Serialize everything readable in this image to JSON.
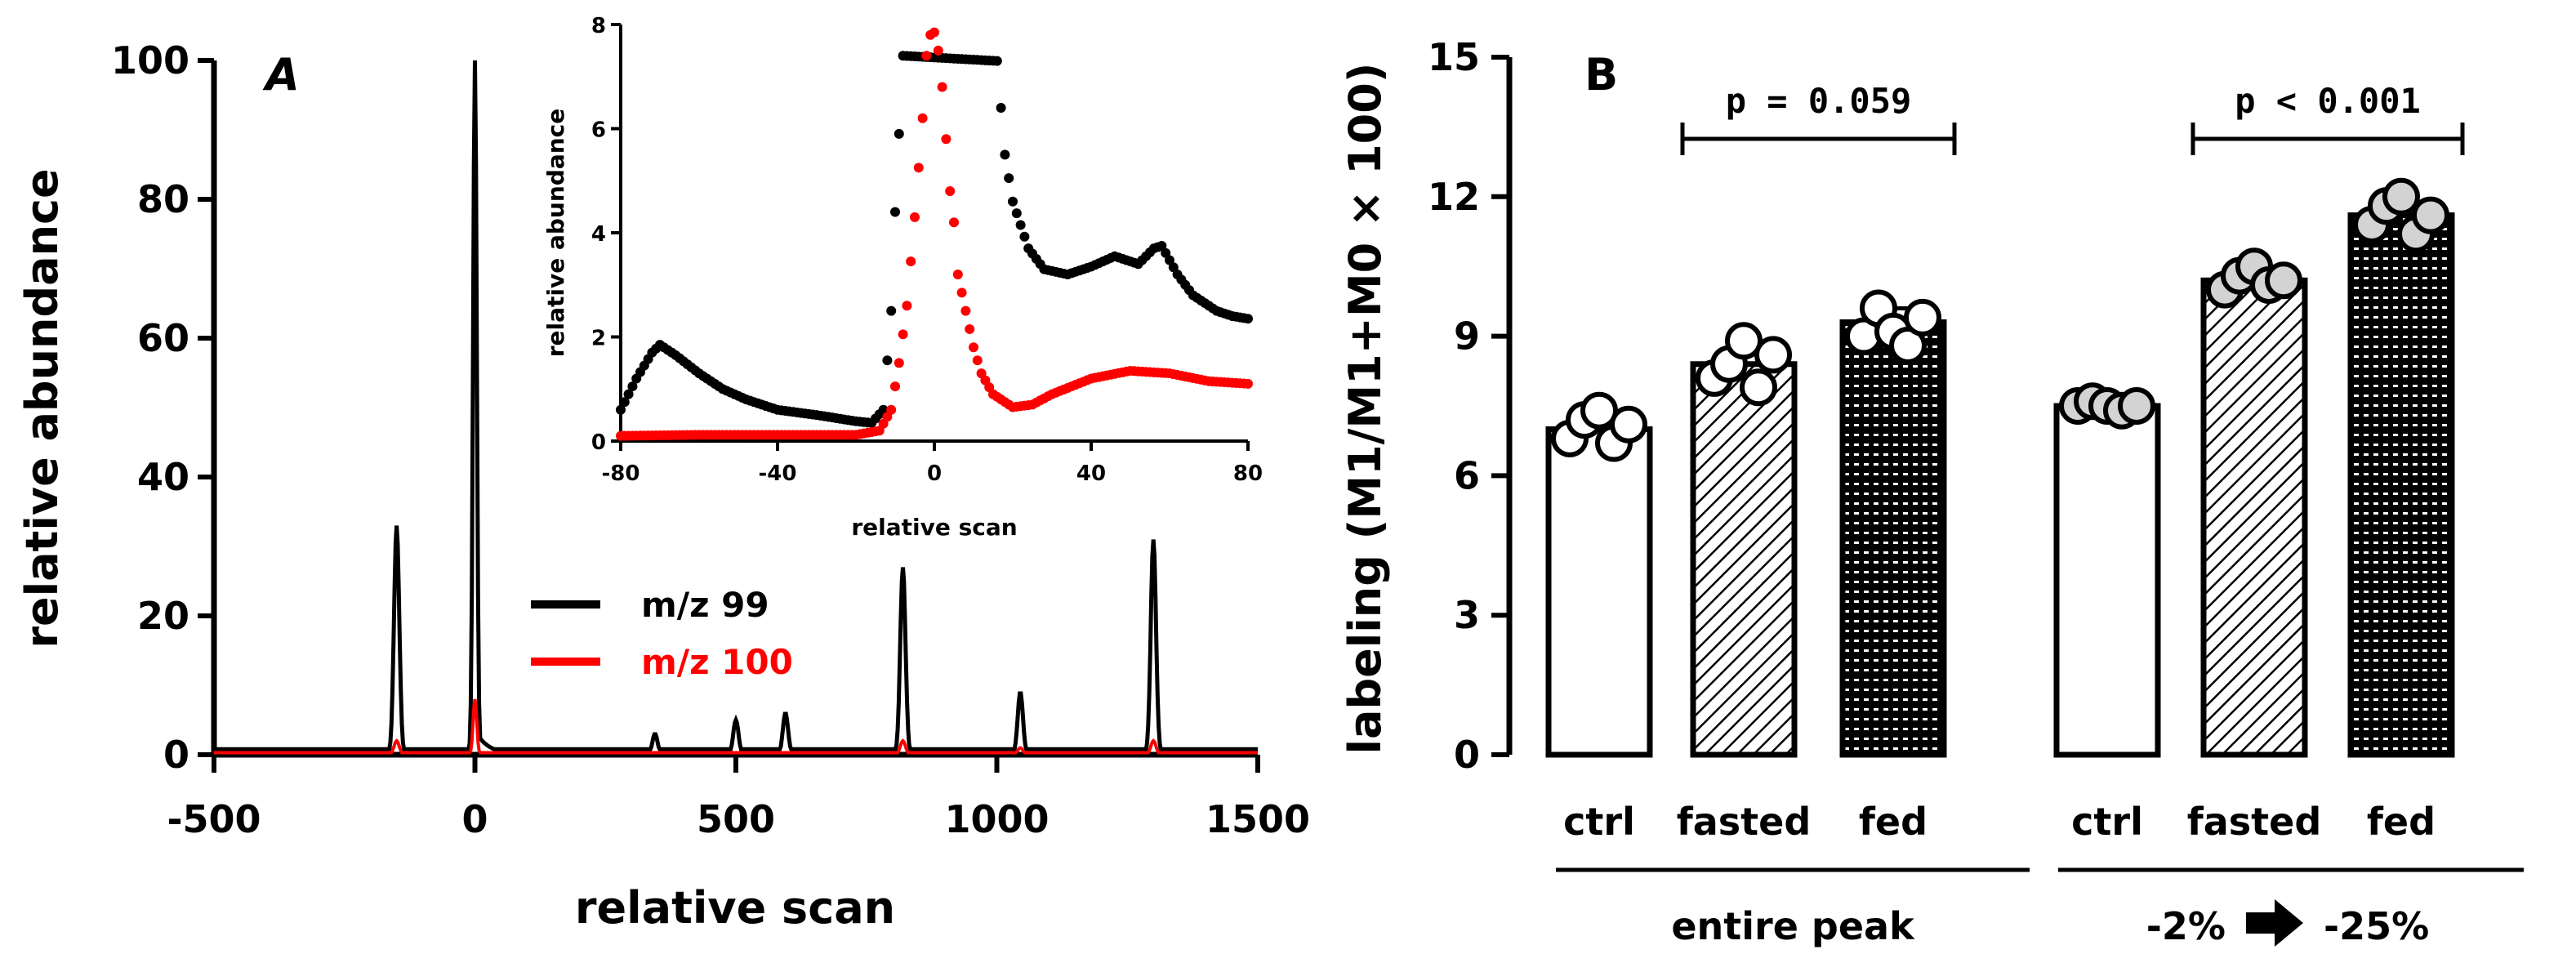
{
  "colors": {
    "black": "#000000",
    "red": "#ff0000",
    "marker_fill": "#d3d3d3"
  },
  "chart_data": [
    {
      "panel": "A",
      "type": "line",
      "xlabel": "relative scan",
      "ylabel": "relative abundance",
      "xlim": [
        -500,
        1500
      ],
      "ylim": [
        0,
        100
      ],
      "xticks": [
        "-500",
        "0",
        "500",
        "1000",
        "1500"
      ],
      "yticks": [
        "0",
        "20",
        "40",
        "60",
        "80",
        "100"
      ],
      "legend_position": "center",
      "series": [
        {
          "name": "m/z 99",
          "color": "#000000",
          "peaks": [
            [
              -150,
              33
            ],
            [
              0,
              100
            ],
            [
              345,
              3
            ],
            [
              500,
              5
            ],
            [
              595,
              6
            ],
            [
              820,
              27
            ],
            [
              1045,
              9
            ],
            [
              1300,
              31
            ]
          ]
        },
        {
          "name": "m/z 100",
          "color": "#ff0000",
          "peaks": [
            [
              -150,
              2
            ],
            [
              0,
              8
            ],
            [
              820,
              2
            ],
            [
              1045,
              1
            ],
            [
              1300,
              2
            ]
          ]
        }
      ]
    },
    {
      "panel": "A-inset",
      "type": "scatter",
      "xlabel": "relative scan",
      "ylabel": "relative abundance",
      "xlim": [
        -80,
        80
      ],
      "ylim": [
        0,
        8
      ],
      "xticks": [
        "-80",
        "-40",
        "0",
        "40",
        "80"
      ],
      "yticks": [
        "0",
        "2",
        "4",
        "6",
        "8"
      ],
      "series": [
        {
          "name": "m/z 99",
          "color": "#000000",
          "points": [
            [
              -80,
              0.6
            ],
            [
              -76,
              1.2
            ],
            [
              -72,
              1.7
            ],
            [
              -70,
              1.85
            ],
            [
              -66,
              1.65
            ],
            [
              -60,
              1.3
            ],
            [
              -54,
              1.0
            ],
            [
              -48,
              0.8
            ],
            [
              -40,
              0.6
            ],
            [
              -30,
              0.5
            ],
            [
              -20,
              0.38
            ],
            [
              -16,
              0.35
            ],
            [
              -13,
              0.6
            ],
            [
              -11,
              2.5
            ],
            [
              -10,
              4.4
            ],
            [
              -8,
              7.4
            ],
            [
              16,
              7.3
            ],
            [
              18,
              5.5
            ],
            [
              20,
              4.6
            ],
            [
              24,
              3.7
            ],
            [
              28,
              3.3
            ],
            [
              34,
              3.2
            ],
            [
              40,
              3.35
            ],
            [
              46,
              3.55
            ],
            [
              52,
              3.4
            ],
            [
              56,
              3.7
            ],
            [
              58,
              3.75
            ],
            [
              62,
              3.2
            ],
            [
              66,
              2.8
            ],
            [
              72,
              2.5
            ],
            [
              76,
              2.4
            ],
            [
              80,
              2.35
            ]
          ]
        },
        {
          "name": "m/z 100",
          "color": "#ff0000",
          "points": [
            [
              -80,
              0.1
            ],
            [
              -60,
              0.12
            ],
            [
              -40,
              0.12
            ],
            [
              -20,
              0.12
            ],
            [
              -14,
              0.2
            ],
            [
              -11,
              0.6
            ],
            [
              -9,
              1.5
            ],
            [
              -7,
              2.6
            ],
            [
              -5,
              4.3
            ],
            [
              -3,
              6.2
            ],
            [
              -2,
              7.4
            ],
            [
              -1,
              7.8
            ],
            [
              0,
              7.85
            ],
            [
              1,
              7.5
            ],
            [
              2,
              6.8
            ],
            [
              3,
              5.8
            ],
            [
              4,
              4.8
            ],
            [
              5,
              4.2
            ],
            [
              6,
              3.2
            ],
            [
              8,
              2.5
            ],
            [
              10,
              1.8
            ],
            [
              12,
              1.3
            ],
            [
              15,
              0.9
            ],
            [
              20,
              0.65
            ],
            [
              25,
              0.7
            ],
            [
              30,
              0.9
            ],
            [
              40,
              1.2
            ],
            [
              50,
              1.35
            ],
            [
              60,
              1.3
            ],
            [
              70,
              1.15
            ],
            [
              80,
              1.1
            ]
          ]
        }
      ]
    },
    {
      "panel": "B",
      "type": "bar",
      "ylabel": "labeling (M1/M1+M0 × 100)",
      "ylim": [
        0,
        15
      ],
      "yticks": [
        "0",
        "3",
        "6",
        "9",
        "12",
        "15"
      ],
      "categories": [
        "ctrl",
        "fasted",
        "fed",
        "ctrl",
        "fasted",
        "fed"
      ],
      "groups": [
        "entire peak",
        "-2%",
        "-25%"
      ],
      "values": [
        7.0,
        8.4,
        9.3,
        7.5,
        10.2,
        11.6
      ],
      "errors": [
        0.2,
        0.25,
        0.3,
        0.05,
        0.2,
        0.2
      ],
      "patterns": [
        "none",
        "hatch",
        "dots",
        "none",
        "hatch",
        "dots"
      ],
      "points": [
        [
          6.8,
          7.2,
          7.4,
          6.7,
          7.1
        ],
        [
          8.1,
          8.4,
          8.9,
          7.9,
          8.6
        ],
        [
          9.0,
          9.6,
          9.1,
          8.8,
          9.4
        ],
        [
          7.5,
          7.6,
          7.5,
          7.4,
          7.5
        ],
        [
          10.0,
          10.3,
          10.5,
          10.1,
          10.2
        ],
        [
          11.4,
          11.8,
          12.0,
          11.2,
          11.6
        ]
      ],
      "point_fill": [
        "#ffffff",
        "#ffffff",
        "#ffffff",
        "#d3d3d3",
        "#d3d3d3",
        "#d3d3d3"
      ],
      "annotations": [
        {
          "label": "p = 0.059",
          "from": 1,
          "to": 2
        },
        {
          "label": "p < 0.001",
          "from": 4,
          "to": 5
        }
      ]
    }
  ],
  "labels": {
    "panel_a": "A",
    "panel_b": "B",
    "legend_99": "m/z 99",
    "legend_100": "m/z 100",
    "group_entire": "entire peak",
    "group_range_start": "-2%",
    "group_range_end": "-25%"
  }
}
